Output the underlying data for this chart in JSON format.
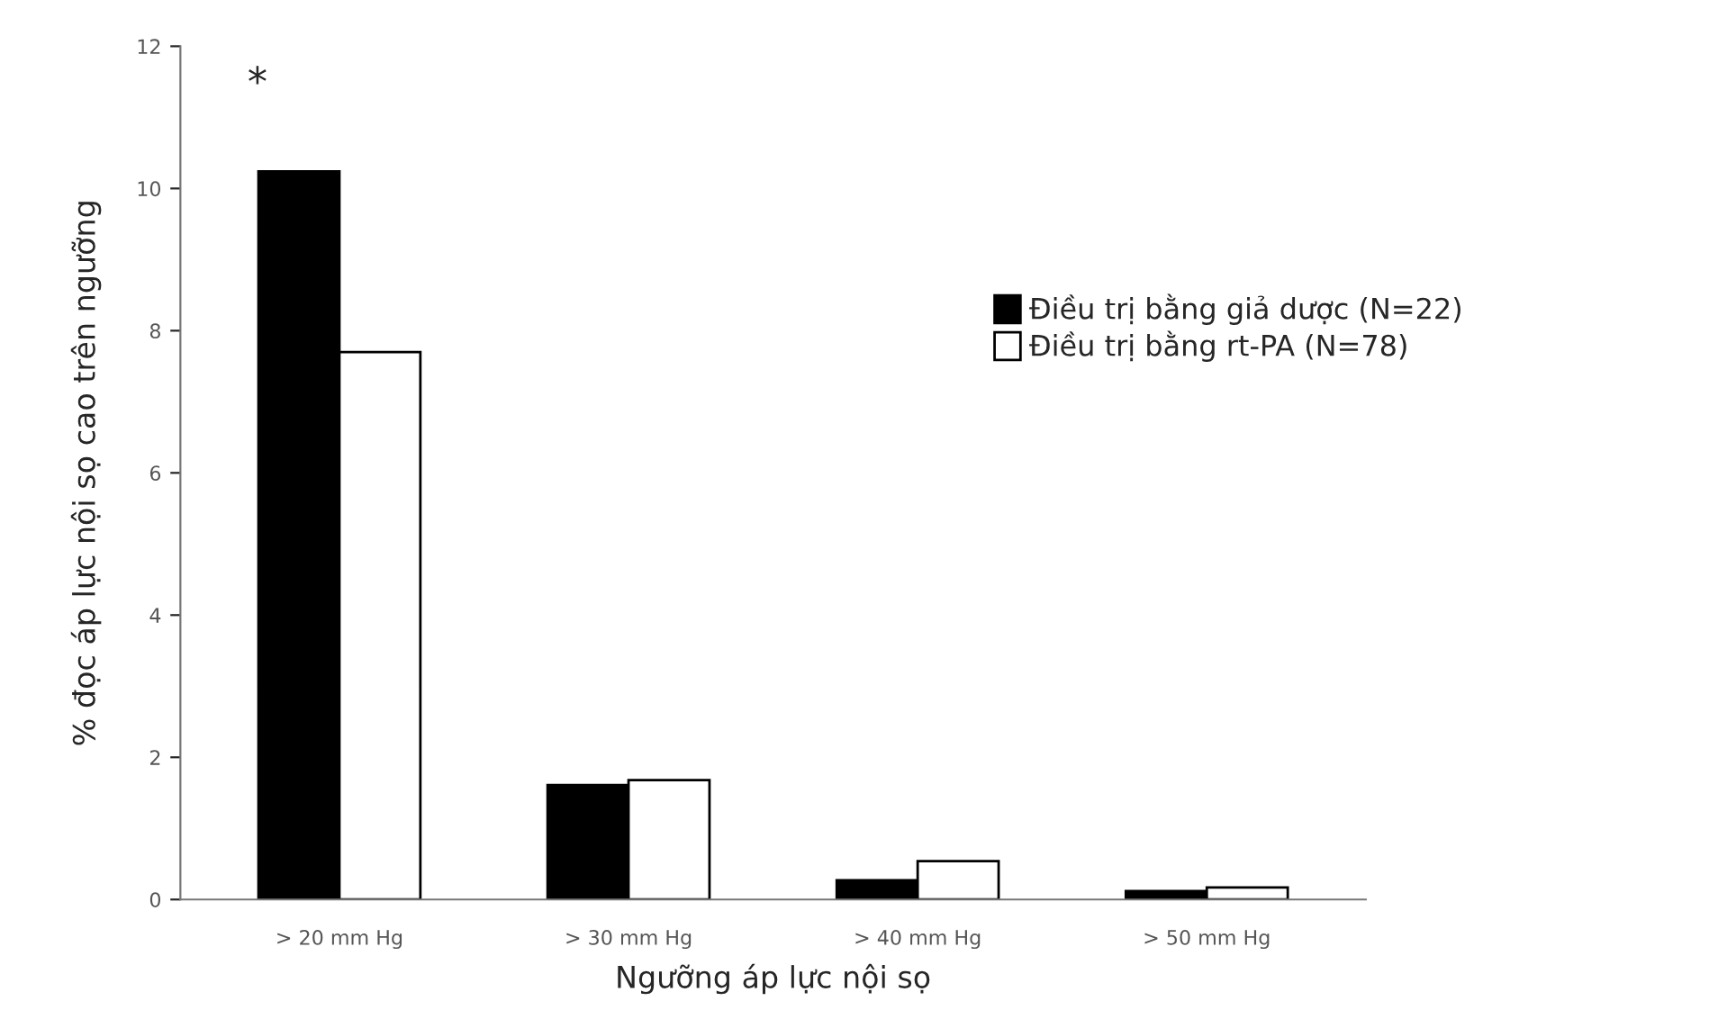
{
  "chart_data": {
    "type": "bar",
    "xlabel": "Ngưỡng áp lực nội sọ",
    "ylabel": "% đọc áp lực nội sọ cao trên ngưỡng",
    "categories": [
      "> 20 mm Hg",
      "> 30 mm Hg",
      "> 40 mm Hg",
      "> 50 mm Hg"
    ],
    "series": [
      {
        "name": "Điều trị bằng giả dược (N=22)",
        "color": "#000000",
        "values": [
          10.24,
          1.61,
          0.27,
          0.12
        ]
      },
      {
        "name": "Điều trị bằng rt-PA (N=78)",
        "color": "#ffffff",
        "values": [
          7.7,
          1.68,
          0.54,
          0.17
        ]
      }
    ],
    "ylim": [
      0,
      12
    ],
    "yticks": [
      0,
      2,
      4,
      6,
      8,
      10,
      12
    ],
    "grid": false,
    "legend": "right",
    "annotations": [
      "*"
    ]
  }
}
